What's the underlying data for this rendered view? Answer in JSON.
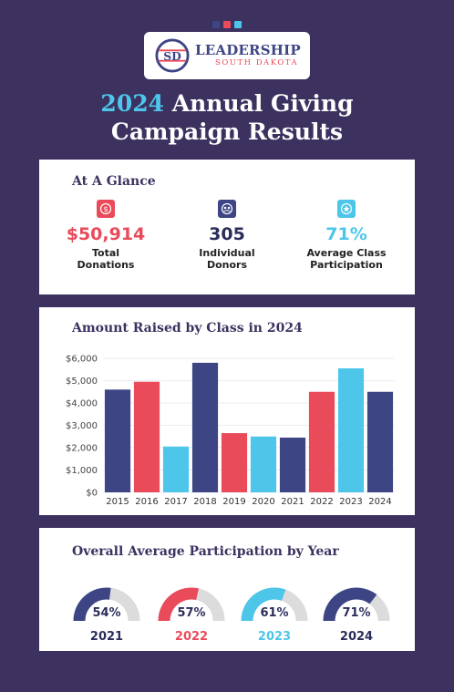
{
  "header": {
    "dots": [
      "#3d4585",
      "#e94b5b",
      "#4dc6ea"
    ],
    "logo": {
      "monogram": "SD",
      "main": "LEADERSHIP",
      "sub": "SOUTH DAKOTA"
    },
    "title_year": "2024",
    "title_line1_rest": " Annual Giving",
    "title_line2": "Campaign Results"
  },
  "glance": {
    "title": "At A Glance",
    "stats": [
      {
        "value": "$50,914",
        "label_line1": "Total",
        "label_line2": "Donations",
        "color": "#e94b5b",
        "icon": "dollar-icon"
      },
      {
        "value": "305",
        "label_line1": "Individual",
        "label_line2": "Donors",
        "color": "#3d4585",
        "icon": "donors-icon"
      },
      {
        "value": "71%",
        "label_line1": "Average Class",
        "label_line2": "Participation",
        "color": "#4dc6ea",
        "icon": "participation-icon"
      }
    ]
  },
  "chart_data": [
    {
      "type": "bar",
      "title": "Amount Raised by Class in 2024",
      "categories": [
        "2015",
        "2016",
        "2017",
        "2018",
        "2019",
        "2020",
        "2021",
        "2022",
        "2023",
        "2024"
      ],
      "values": [
        4600,
        4950,
        2050,
        5800,
        2650,
        2500,
        2450,
        4500,
        5550,
        4500
      ],
      "colors": [
        "#3d4585",
        "#e94b5b",
        "#4dc6ea",
        "#3d4585",
        "#e94b5b",
        "#4dc6ea",
        "#3d4585",
        "#e94b5b",
        "#4dc6ea",
        "#3d4585"
      ],
      "ylim": [
        0,
        6000
      ],
      "yticks": [
        "$0",
        "$1,000",
        "$2,000",
        "$3,000",
        "$4,000",
        "$5,000",
        "$6,000"
      ],
      "grid": true
    },
    {
      "type": "gauge",
      "title": "Overall Average Participation by Year",
      "items": [
        {
          "year": "2021",
          "value": 54,
          "label": "54%",
          "color": "#3d4585",
          "year_color": "#2b2d5a"
        },
        {
          "year": "2022",
          "value": 57,
          "label": "57%",
          "color": "#e94b5b",
          "year_color": "#e94b5b"
        },
        {
          "year": "2023",
          "value": 61,
          "label": "61%",
          "color": "#4dc6ea",
          "year_color": "#4dc6ea"
        },
        {
          "year": "2024",
          "value": 71,
          "label": "71%",
          "color": "#3d4585",
          "year_color": "#2b2d5a"
        }
      ]
    }
  ]
}
